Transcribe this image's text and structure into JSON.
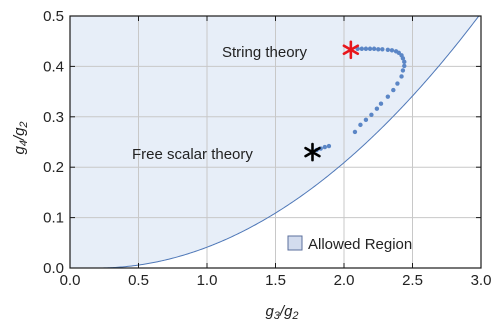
{
  "colors": {
    "region_fill": "#e7eef8",
    "boundary": "#4f78b8",
    "points": "#5b86c6",
    "grid": "#c8c8c8",
    "frame": "#1a1a1a",
    "string_star": "#e8161b",
    "scalar_star": "#000000",
    "legend_fill": "#d3dcee",
    "legend_edge": "#5b6f9c"
  },
  "chart_data": {
    "type": "scatter",
    "title": "",
    "xlabel": {
      "main": "g",
      "sub1": "3",
      "sep": "/g",
      "sub2": "2"
    },
    "ylabel": {
      "main": "g",
      "sub1": "4",
      "sep": "/g",
      "sub2": "2"
    },
    "xlim": [
      0.0,
      3.0
    ],
    "ylim": [
      0.0,
      0.5
    ],
    "x_ticks": [
      "0.0",
      "0.5",
      "1.0",
      "1.5",
      "2.0",
      "2.5",
      "3.0"
    ],
    "y_ticks": [
      "0.0",
      "0.1",
      "0.2",
      "0.3",
      "0.4",
      "0.5"
    ],
    "x_tick_values": [
      0.0,
      0.5,
      1.0,
      1.5,
      2.0,
      2.5,
      3.0
    ],
    "y_tick_values": [
      0.0,
      0.1,
      0.2,
      0.3,
      0.4,
      0.5
    ],
    "grid": true,
    "boundary": {
      "description_formula": "y = max(0, x - 0.2)^2 / 15.5",
      "x_from": 0.0,
      "x_to": 3.0
    },
    "legend": {
      "position": "bottom-right",
      "label": "Allowed Region"
    },
    "series": [
      {
        "points": [
          [
            1.8,
            0.234
          ],
          [
            1.83,
            0.237
          ],
          [
            1.86,
            0.24
          ],
          [
            1.89,
            0.242
          ],
          [
            2.08,
            0.27
          ],
          [
            2.12,
            0.284
          ],
          [
            2.16,
            0.294
          ],
          [
            2.2,
            0.304
          ],
          [
            2.24,
            0.316
          ],
          [
            2.27,
            0.326
          ],
          [
            2.32,
            0.34
          ],
          [
            2.36,
            0.353
          ],
          [
            2.39,
            0.366
          ],
          [
            2.42,
            0.38
          ],
          [
            2.43,
            0.392
          ],
          [
            2.44,
            0.401
          ],
          [
            2.44,
            0.409
          ],
          [
            2.43,
            0.416
          ],
          [
            2.42,
            0.422
          ],
          [
            2.4,
            0.427
          ],
          [
            2.38,
            0.43
          ],
          [
            2.35,
            0.432
          ],
          [
            2.32,
            0.433
          ],
          [
            2.28,
            0.434
          ],
          [
            2.25,
            0.434
          ],
          [
            2.22,
            0.435
          ],
          [
            2.19,
            0.435
          ],
          [
            2.16,
            0.435
          ],
          [
            2.13,
            0.435
          ],
          [
            2.1,
            0.435
          ]
        ]
      }
    ],
    "annotations": [
      {
        "label": "String theory",
        "x": 2.05,
        "y": 0.433,
        "marker": "star",
        "color_key": "string_star"
      },
      {
        "label": "Free scalar theory",
        "x": 1.77,
        "y": 0.23,
        "marker": "star",
        "color_key": "scalar_star"
      }
    ]
  }
}
